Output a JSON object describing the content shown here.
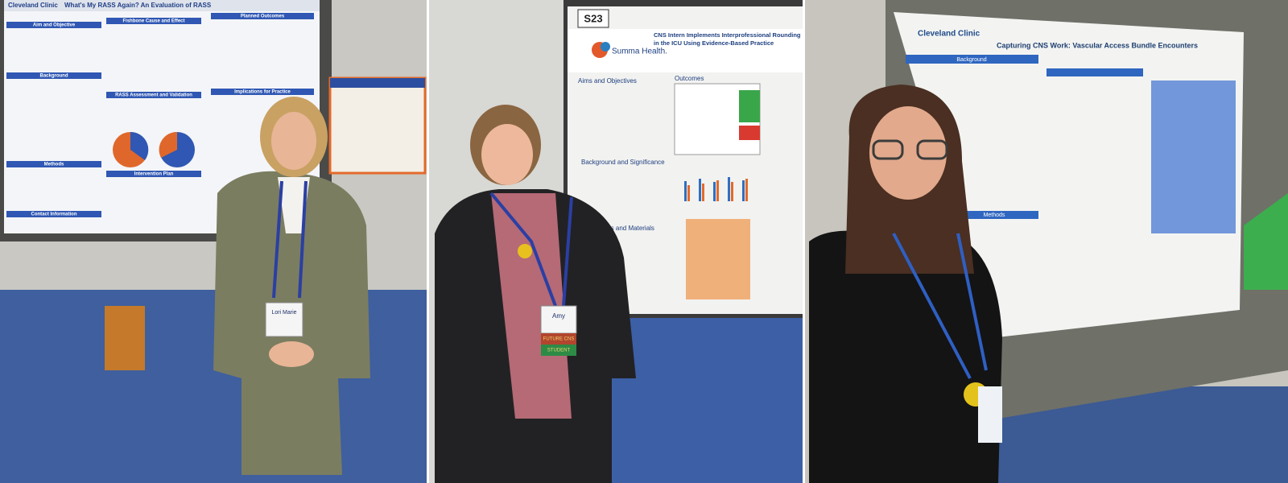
{
  "panels": [
    {
      "poster": {
        "brand": "Cleveland Clinic",
        "title": "What's My RASS Again? An Evaluation of RASS",
        "sections": [
          "Aim and Objective",
          "Background",
          "Methods",
          "Contact Information",
          "Fishbone Cause and Effect",
          "RASS Assessment and Validation",
          "Intervention Plan",
          "Planned Outcomes",
          "Implications for Practice"
        ]
      },
      "badge": {
        "name": "Lori Marie"
      }
    },
    {
      "poster": {
        "label": "S23",
        "brand": "Summa Health.",
        "title_lines": [
          "CNS Intern Implements Interprofessional Rounding",
          "in the ICU Using Evidence-Based Practice"
        ],
        "sections": [
          "Aims and Objectives",
          "Outcomes",
          "Background and Significance",
          "Methods and Materials"
        ]
      },
      "badge": {
        "name": "Amy",
        "ribbons": [
          "FUTURE CNS",
          "STUDENT"
        ]
      }
    },
    {
      "poster": {
        "brand": "Cleveland Clinic",
        "title": "Capturing CNS Work: Vascular Access Bundle Encounters",
        "sections": [
          "Background",
          "Methods"
        ]
      }
    }
  ]
}
